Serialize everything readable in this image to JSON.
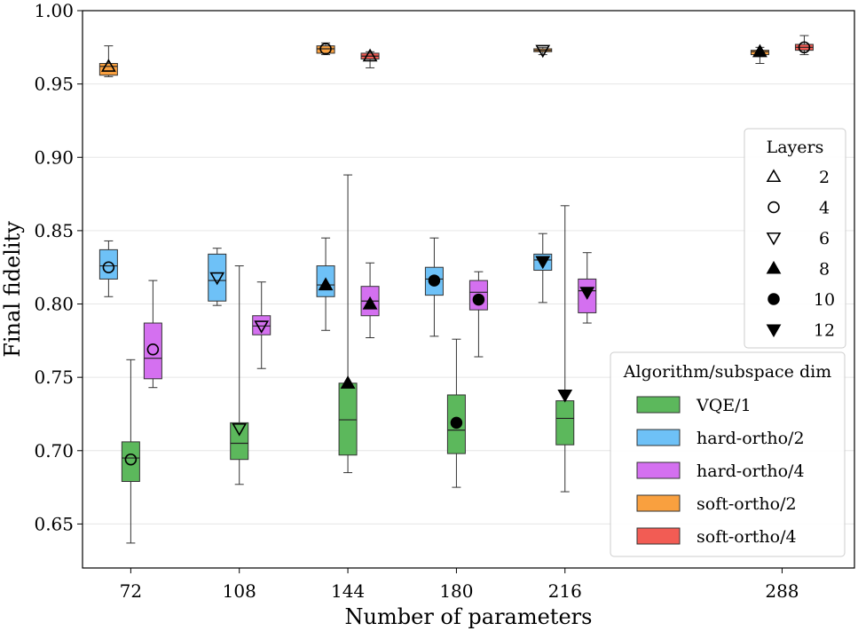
{
  "chart_data": {
    "type": "box",
    "xlabel": "Number of parameters",
    "ylabel": "Final fidelity",
    "ylim": [
      0.62,
      1.0
    ],
    "yticks": [
      0.65,
      0.7,
      0.75,
      0.8,
      0.85,
      0.9,
      0.95,
      1.0
    ],
    "ytick_labels": [
      "0.65",
      "0.70",
      "0.75",
      "0.80",
      "0.85",
      "0.90",
      "0.95",
      "1.00"
    ],
    "xlim": [
      56,
      312
    ],
    "xticks": [
      72,
      108,
      144,
      180,
      216,
      288
    ],
    "xtick_labels": [
      "72",
      "108",
      "144",
      "180",
      "216",
      "288"
    ],
    "grid": "horizontal",
    "layers_legend": {
      "title": "Layers",
      "entries": [
        {
          "label": "2",
          "marker": "triangle-up-open"
        },
        {
          "label": "4",
          "marker": "circle-open"
        },
        {
          "label": "6",
          "marker": "triangle-down-open"
        },
        {
          "label": "8",
          "marker": "triangle-up-filled"
        },
        {
          "label": "10",
          "marker": "circle-filled"
        },
        {
          "label": "12",
          "marker": "triangle-down-filled"
        }
      ]
    },
    "algo_legend": {
      "title": "Algorithm/subspace dim",
      "entries": [
        {
          "label": "VQE/1",
          "series": "vqe1"
        },
        {
          "label": "hard-ortho/2",
          "series": "hard2"
        },
        {
          "label": "hard-ortho/4",
          "series": "hard4"
        },
        {
          "label": "soft-ortho/2",
          "series": "soft2"
        },
        {
          "label": "soft-ortho/4",
          "series": "soft4"
        }
      ]
    },
    "colors": {
      "vqe1": "#5cb85c",
      "hard2": "#6ec1f7",
      "hard4": "#d470f0",
      "soft2": "#f9a03f",
      "soft4": "#f25c54"
    },
    "series": [
      {
        "name": "VQE/1",
        "key": "vqe1",
        "boxes": [
          {
            "x": 72,
            "offset": 0,
            "min": 0.637,
            "q1": 0.679,
            "median": 0.695,
            "q3": 0.706,
            "max": 0.762,
            "marker": "circle-open",
            "mean": 0.694
          },
          {
            "x": 108,
            "offset": 0,
            "min": 0.677,
            "q1": 0.694,
            "median": 0.705,
            "q3": 0.719,
            "max": 0.826,
            "marker": "triangle-down-open",
            "mean": 0.715
          },
          {
            "x": 144,
            "offset": 0,
            "min": 0.685,
            "q1": 0.697,
            "median": 0.721,
            "q3": 0.746,
            "max": 0.888,
            "marker": "triangle-up-filled",
            "mean": 0.746
          },
          {
            "x": 180,
            "offset": 0,
            "min": 0.675,
            "q1": 0.698,
            "median": 0.714,
            "q3": 0.738,
            "max": 0.776,
            "marker": "circle-filled",
            "mean": 0.719
          },
          {
            "x": 216,
            "offset": 0,
            "min": 0.672,
            "q1": 0.704,
            "median": 0.722,
            "q3": 0.734,
            "max": 0.867,
            "marker": "triangle-down-filled",
            "mean": 0.738
          }
        ]
      },
      {
        "name": "hard-ortho/2",
        "key": "hard2",
        "boxes": [
          {
            "x": 72,
            "offset": -0.5,
            "min": 0.805,
            "q1": 0.817,
            "median": 0.826,
            "q3": 0.837,
            "max": 0.843,
            "marker": "circle-open",
            "mean": 0.825
          },
          {
            "x": 108,
            "offset": -0.5,
            "min": 0.799,
            "q1": 0.802,
            "median": 0.816,
            "q3": 0.834,
            "max": 0.838,
            "marker": "triangle-down-open",
            "mean": 0.818
          },
          {
            "x": 144,
            "offset": -0.5,
            "min": 0.782,
            "q1": 0.805,
            "median": 0.813,
            "q3": 0.826,
            "max": 0.845,
            "marker": "triangle-up-filled",
            "mean": 0.813
          },
          {
            "x": 180,
            "offset": -0.5,
            "min": 0.778,
            "q1": 0.806,
            "median": 0.817,
            "q3": 0.825,
            "max": 0.845,
            "marker": "circle-filled",
            "mean": 0.816
          },
          {
            "x": 216,
            "offset": -0.5,
            "min": 0.801,
            "q1": 0.823,
            "median": 0.83,
            "q3": 0.834,
            "max": 0.848,
            "marker": "triangle-down-filled",
            "mean": 0.829
          }
        ]
      },
      {
        "name": "hard-ortho/4",
        "key": "hard4",
        "boxes": [
          {
            "x": 72,
            "offset": 0.5,
            "min": 0.743,
            "q1": 0.749,
            "median": 0.763,
            "q3": 0.787,
            "max": 0.816,
            "marker": "circle-open",
            "mean": 0.769
          },
          {
            "x": 108,
            "offset": 0.5,
            "min": 0.756,
            "q1": 0.779,
            "median": 0.785,
            "q3": 0.792,
            "max": 0.815,
            "marker": "triangle-down-open",
            "mean": 0.785
          },
          {
            "x": 144,
            "offset": 0.5,
            "min": 0.777,
            "q1": 0.792,
            "median": 0.802,
            "q3": 0.812,
            "max": 0.828,
            "marker": "triangle-up-filled",
            "mean": 0.8
          },
          {
            "x": 180,
            "offset": 0.5,
            "min": 0.764,
            "q1": 0.796,
            "median": 0.808,
            "q3": 0.816,
            "max": 0.822,
            "marker": "circle-filled",
            "mean": 0.803
          },
          {
            "x": 216,
            "offset": 0.5,
            "min": 0.787,
            "q1": 0.794,
            "median": 0.809,
            "q3": 0.817,
            "max": 0.835,
            "marker": "triangle-down-filled",
            "mean": 0.808
          }
        ]
      },
      {
        "name": "soft-ortho/2",
        "key": "soft2",
        "boxes": [
          {
            "x": 72,
            "offset": -0.5,
            "min": 0.955,
            "q1": 0.956,
            "median": 0.962,
            "q3": 0.964,
            "max": 0.976,
            "marker": "triangle-up-open",
            "mean": 0.962
          },
          {
            "x": 144,
            "offset": -0.5,
            "min": 0.97,
            "q1": 0.971,
            "median": 0.974,
            "q3": 0.976,
            "max": 0.978,
            "marker": "circle-open",
            "mean": 0.974
          },
          {
            "x": 216,
            "offset": -0.5,
            "min": 0.97,
            "q1": 0.972,
            "median": 0.973,
            "q3": 0.974,
            "max": 0.975,
            "marker": "triangle-down-open",
            "mean": 0.973
          },
          {
            "x": 288,
            "offset": -0.5,
            "min": 0.964,
            "q1": 0.97,
            "median": 0.972,
            "q3": 0.973,
            "max": 0.975,
            "marker": "triangle-up-filled",
            "mean": 0.972
          }
        ]
      },
      {
        "name": "soft-ortho/4",
        "key": "soft4",
        "boxes": [
          {
            "x": 144,
            "offset": 0.5,
            "min": 0.961,
            "q1": 0.967,
            "median": 0.969,
            "q3": 0.971,
            "max": 0.972,
            "marker": "triangle-up-open",
            "mean": 0.969
          },
          {
            "x": 288,
            "offset": 0.5,
            "min": 0.97,
            "q1": 0.973,
            "median": 0.975,
            "q3": 0.977,
            "max": 0.983,
            "marker": "circle-open",
            "mean": 0.975
          }
        ]
      }
    ]
  }
}
